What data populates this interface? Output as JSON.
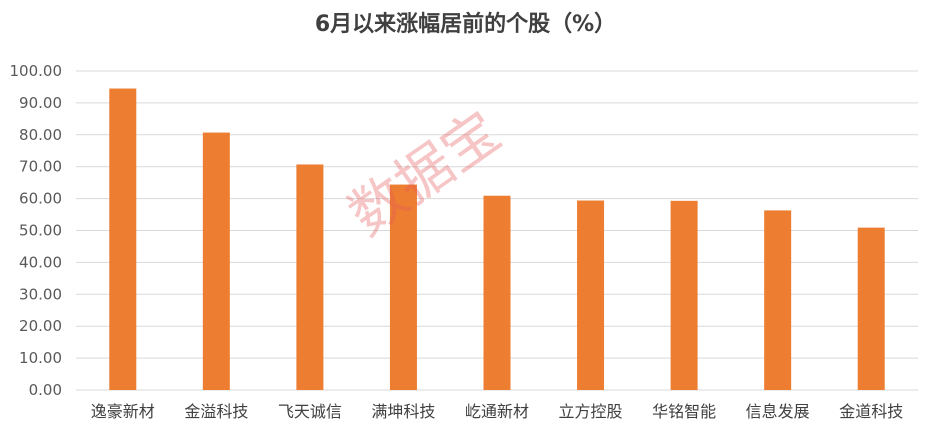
{
  "chart_data": {
    "type": "bar",
    "title": "6月以来涨幅居前的个股（%）",
    "categories": [
      "逸豪新材",
      "金溢科技",
      "飞天诚信",
      "满坤科技",
      "屹通新材",
      "立方控股",
      "华铭智能",
      "信息发展",
      "金道科技"
    ],
    "values": [
      94.5,
      80.7,
      70.7,
      64.4,
      60.9,
      59.4,
      59.3,
      56.3,
      50.9
    ],
    "ylim": [
      0,
      100
    ],
    "ytick_step": 10,
    "ytick_labels": [
      "0.00",
      "10.00",
      "20.00",
      "30.00",
      "40.00",
      "50.00",
      "60.00",
      "70.00",
      "80.00",
      "90.00",
      "100.00"
    ],
    "grid": true,
    "bar_color": "#ED7D31",
    "grid_color": "#D9D9D9"
  },
  "watermark": "数据宝"
}
